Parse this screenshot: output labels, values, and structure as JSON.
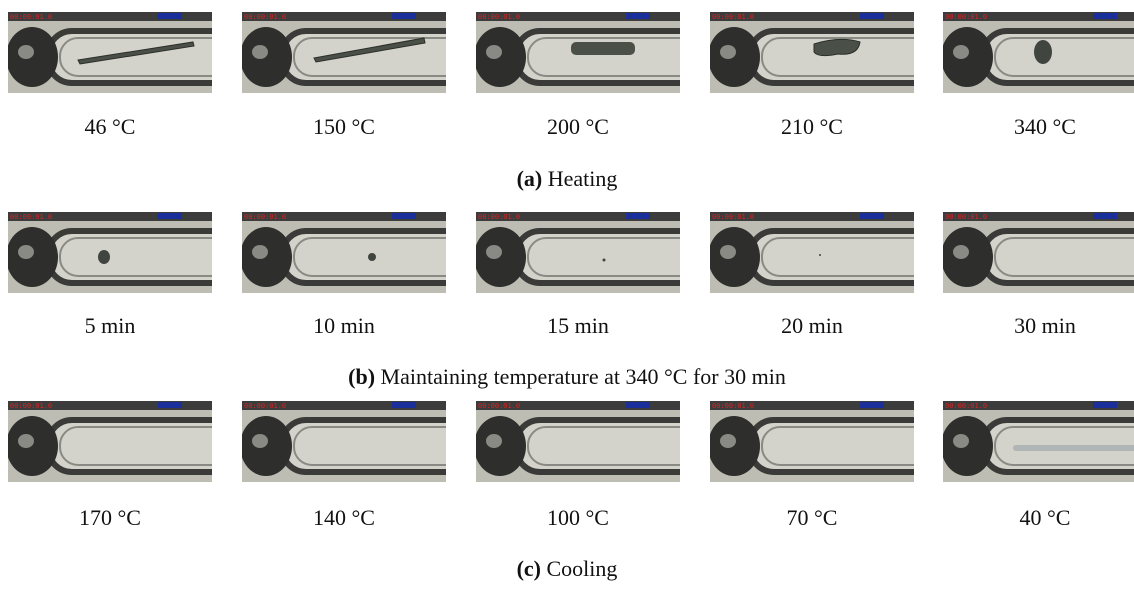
{
  "timestamp": "00:00:01.0",
  "panels": [
    {
      "label": "(a)",
      "caption": "Heating",
      "frames": [
        "46 °C",
        "150 °C",
        "200 °C",
        "210 °C",
        "340 °C"
      ]
    },
    {
      "label": "(b)",
      "caption": "Maintaining temperature at 340 °C for 30 min",
      "frames": [
        "5 min",
        "10 min",
        "15 min",
        "20 min",
        "30 min"
      ]
    },
    {
      "label": "(c)",
      "caption": "Cooling",
      "frames": [
        "170 °C",
        "140 °C",
        "100 °C",
        "70 °C",
        "40 °C"
      ]
    }
  ]
}
